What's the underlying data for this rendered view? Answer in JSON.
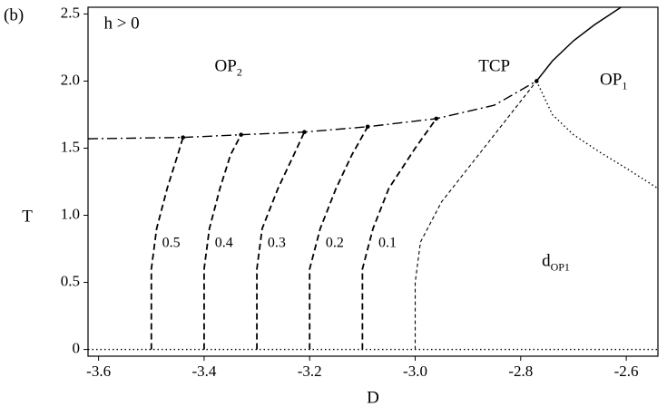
{
  "chart_data": {
    "type": "line",
    "panel_label": "(b)",
    "xlabel": "D",
    "ylabel": "T",
    "xlim": [
      -3.62,
      -2.54
    ],
    "ylim": [
      -0.05,
      2.55
    ],
    "xticks": [
      -3.6,
      -3.4,
      -3.2,
      {
        "value": -3.0,
        "label": "-3.0"
      },
      -2.8,
      -2.6
    ],
    "yticks": [
      0,
      0.5,
      {
        "value": 1.0,
        "label": "1.0"
      },
      1.5,
      {
        "value": 2.0,
        "label": "2.0"
      },
      2.5
    ],
    "color": "#000000",
    "series": [
      {
        "style": "dashdot",
        "x": [
          -3.62,
          -3.44,
          -3.33,
          -3.21,
          -3.09,
          -2.96,
          -2.85,
          -2.77
        ],
        "y": [
          1.57,
          1.58,
          1.6,
          1.62,
          1.66,
          1.72,
          1.82,
          2.0
        ]
      },
      {
        "style": "solid",
        "x": [
          -2.77,
          -2.74,
          -2.7,
          -2.66,
          -2.61
        ],
        "y": [
          2.0,
          2.15,
          2.3,
          2.42,
          2.55
        ]
      },
      {
        "style": "dotted",
        "x": [
          -2.77,
          -2.74,
          -2.7,
          -2.65,
          -2.6,
          -2.54
        ],
        "y": [
          2.0,
          1.75,
          1.6,
          1.47,
          1.35,
          1.2
        ]
      },
      {
        "style": "dotted",
        "x": [
          -3.62,
          -2.54
        ],
        "y": [
          0,
          0
        ]
      },
      {
        "style": "dashed",
        "label": "0.5",
        "end_dot": true,
        "x": [
          -3.5,
          -3.5,
          -3.49,
          -3.47,
          -3.45,
          -3.44
        ],
        "y": [
          0,
          0.6,
          0.9,
          1.2,
          1.45,
          1.58
        ]
      },
      {
        "style": "dashed",
        "label": "0.4",
        "end_dot": true,
        "x": [
          -3.4,
          -3.4,
          -3.39,
          -3.37,
          -3.35,
          -3.33
        ],
        "y": [
          0,
          0.6,
          0.9,
          1.2,
          1.45,
          1.6
        ]
      },
      {
        "style": "dashed",
        "label": "0.3",
        "end_dot": true,
        "x": [
          -3.3,
          -3.3,
          -3.29,
          -3.26,
          -3.23,
          -3.21
        ],
        "y": [
          0,
          0.6,
          0.9,
          1.2,
          1.45,
          1.62
        ]
      },
      {
        "style": "dashed",
        "label": "0.2",
        "end_dot": true,
        "x": [
          -3.2,
          -3.2,
          -3.18,
          -3.15,
          -3.12,
          -3.09
        ],
        "y": [
          0,
          0.6,
          0.9,
          1.2,
          1.45,
          1.66
        ]
      },
      {
        "style": "dashed",
        "label": "0.1",
        "end_dot": true,
        "x": [
          -3.1,
          -3.1,
          -3.08,
          -3.05,
          -3.0,
          -2.96
        ],
        "y": [
          0,
          0.6,
          0.9,
          1.2,
          1.5,
          1.72
        ]
      },
      {
        "style": "thin-dashed",
        "end_dot": true,
        "x": [
          -3.0,
          -3.0,
          -2.99,
          -2.95,
          -2.88,
          -2.82,
          -2.77
        ],
        "y": [
          0,
          0.5,
          0.8,
          1.1,
          1.45,
          1.75,
          2.0
        ]
      }
    ],
    "annotations": [
      {
        "text": "h > 0",
        "x": -3.59,
        "y": 2.42
      },
      {
        "text": "OP",
        "sub": "2",
        "x": -3.38,
        "y": 2.1
      },
      {
        "text": "TCP",
        "x": -2.88,
        "y": 2.1
      },
      {
        "text": "OP",
        "sub": "1",
        "x": -2.65,
        "y": 2.0
      },
      {
        "text": "d",
        "sub": "OP1",
        "x": -2.76,
        "y": 0.65
      }
    ]
  }
}
